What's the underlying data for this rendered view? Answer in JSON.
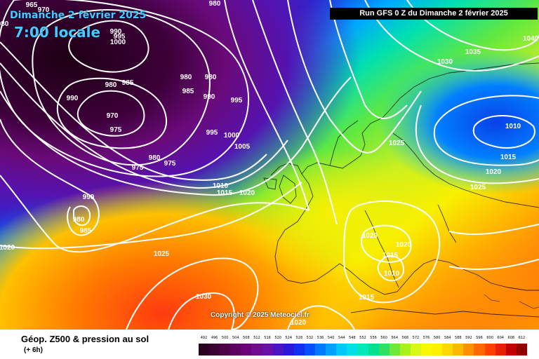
{
  "header": {
    "date": "Dimanche 2 février 2025",
    "time": "7:00 locale",
    "run": "Run GFS 0 Z du Dimanche 2 février 2025"
  },
  "copyright": "Copyright © 2025 Meteociel.fr",
  "legend": {
    "title": "Géop. Z500 & pression au sol",
    "subtitle": "(+ 6h)",
    "scale_values": [
      "492",
      "496",
      "500",
      "504",
      "508",
      "512",
      "516",
      "520",
      "524",
      "528",
      "532",
      "536",
      "540",
      "544",
      "548",
      "552",
      "556",
      "560",
      "564",
      "568",
      "572",
      "576",
      "580",
      "584",
      "588",
      "592",
      "596",
      "600",
      "604",
      "608",
      "612"
    ],
    "scale_colors": [
      "#2a001f",
      "#3a0030",
      "#4d0048",
      "#5c0060",
      "#6b007a",
      "#700a90",
      "#6810a8",
      "#4a14c0",
      "#2a18d8",
      "#1030f0",
      "#0050ff",
      "#0078ff",
      "#00a0ff",
      "#00c8ff",
      "#00e0e8",
      "#00e8b8",
      "#00e090",
      "#30e060",
      "#70e838",
      "#a8f020",
      "#d8f818",
      "#f8f800",
      "#fff000",
      "#ffd800",
      "#ffb800",
      "#ff9000",
      "#ff6800",
      "#ff4000",
      "#e82000",
      "#c00000",
      "#900000"
    ]
  },
  "isobars": [
    {
      "value": "980",
      "px": "980",
      "py": "5"
    },
    {
      "value": "970",
      "px": "62",
      "py": "14"
    },
    {
      "value": "965",
      "px": "45",
      "py": "7"
    },
    {
      "value": "980",
      "px": "0",
      "py": "34"
    },
    {
      "value": "990",
      "px": "165",
      "py": "45"
    },
    {
      "value": "995",
      "px": "170",
      "py": "52"
    },
    {
      "value": "1000",
      "px": "168",
      "py": "60"
    },
    {
      "value": "980",
      "px": "158",
      "py": "121"
    },
    {
      "value": "985",
      "px": "182",
      "py": "118"
    },
    {
      "value": "990",
      "px": "103",
      "py": "140"
    },
    {
      "value": "970",
      "px": "160",
      "py": "165"
    },
    {
      "value": "975",
      "px": "165",
      "py": "185"
    },
    {
      "value": "980",
      "px": "265",
      "py": "110"
    },
    {
      "value": "980",
      "px": "300",
      "py": "110"
    },
    {
      "value": "985",
      "px": "268",
      "py": "130"
    },
    {
      "value": "990",
      "px": "298",
      "py": "138"
    },
    {
      "value": "995",
      "px": "337",
      "py": "143"
    },
    {
      "value": "995",
      "px": "302",
      "py": "189"
    },
    {
      "value": "1000",
      "px": "330",
      "py": "193"
    },
    {
      "value": "1005",
      "px": "345",
      "py": "209"
    },
    {
      "value": "980",
      "px": "220",
      "py": "225"
    },
    {
      "value": "975",
      "px": "242",
      "py": "233"
    },
    {
      "value": "975",
      "px": "196",
      "py": "239"
    },
    {
      "value": "1010",
      "px": "314",
      "py": "265"
    },
    {
      "value": "1015",
      "px": "320",
      "py": "275"
    },
    {
      "value": "1020",
      "px": "352",
      "py": "275"
    },
    {
      "value": "990",
      "px": "126",
      "py": "281"
    },
    {
      "value": "980",
      "px": "112",
      "py": "313"
    },
    {
      "value": "985",
      "px": "122",
      "py": "329"
    },
    {
      "value": "1020",
      "px": "10",
      "py": "353"
    },
    {
      "value": "1025",
      "px": "230",
      "py": "362"
    },
    {
      "value": "1030",
      "px": "290",
      "py": "423"
    },
    {
      "value": "1020",
      "px": "527",
      "py": "336"
    },
    {
      "value": "1020",
      "px": "575",
      "py": "349"
    },
    {
      "value": "1015",
      "px": "556",
      "py": "364"
    },
    {
      "value": "1010",
      "px": "558",
      "py": "390"
    },
    {
      "value": "1015",
      "px": "522",
      "py": "424"
    },
    {
      "value": "1020",
      "px": "425",
      "py": "460"
    },
    {
      "value": "1025",
      "px": "565",
      "py": "204"
    },
    {
      "value": "1030",
      "px": "634",
      "py": "88"
    },
    {
      "value": "1035",
      "px": "674",
      "py": "74"
    },
    {
      "value": "1040",
      "px": "756",
      "py": "55"
    },
    {
      "value": "1010",
      "px": "731",
      "py": "180"
    },
    {
      "value": "1015",
      "px": "724",
      "py": "224"
    },
    {
      "value": "1020",
      "px": "703",
      "py": "245"
    },
    {
      "value": "1025",
      "px": "681",
      "py": "267"
    }
  ]
}
